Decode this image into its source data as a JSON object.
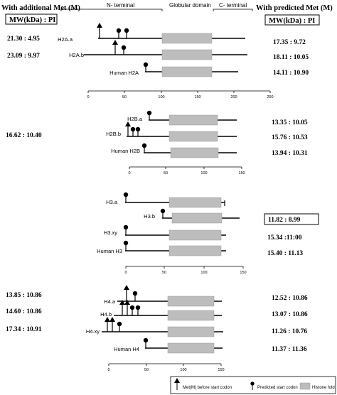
{
  "headers": {
    "left": "With additional Met (M)",
    "right": "With predicted Met (M)",
    "left_box": "MW(kDa) : PI",
    "right_box": "MW(kDa) : PI"
  },
  "regions": {
    "n_terminal": "N- terminal",
    "globular": "Globular domain",
    "c_terminal": "C- terminal"
  },
  "h2a": {
    "rows": [
      {
        "label": "H2A.a",
        "left": "21.30 : 4.95",
        "right": "17.35 : 9.72"
      },
      {
        "label": "H2A.b",
        "left": "23.09 : 9.97",
        "right": "18.11 : 10.05"
      },
      {
        "label": "Human H2A",
        "left": "",
        "right": "14.11 : 10.90"
      }
    ],
    "ticks": [
      "0",
      "50",
      "100",
      "150",
      "200",
      "250"
    ]
  },
  "h2b": {
    "rows": [
      {
        "label": "H2B.a",
        "right": "13.35 : 10.05"
      },
      {
        "label": "H2B.b",
        "right": "15.76 : 10.53"
      },
      {
        "label": "Human H2B",
        "right": "13.94 : 10.31"
      }
    ],
    "left": "16.62 : 10.40",
    "ticks": [
      "0",
      "50",
      "100",
      "150"
    ]
  },
  "h3": {
    "rows": [
      {
        "label": "H3.a",
        "right": ""
      },
      {
        "label": "H3.b",
        "right": "11.82 : 8.99"
      },
      {
        "label": "H3.xy",
        "right": "15.34 :11:00"
      },
      {
        "label": "Human H3",
        "right": "15.40 : 11.13"
      }
    ],
    "ticks": [
      "0",
      "50",
      "100",
      "150"
    ]
  },
  "h4": {
    "rows": [
      {
        "label": "H4.a",
        "left": "13.85 : 10.86",
        "right": "12.52 : 10.86"
      },
      {
        "label": "H4.b",
        "left": "14.60 : 10.86",
        "right": "13.07 : 10.86"
      },
      {
        "label": "H4.xy",
        "left": "17.34 : 10.91",
        "right": "11.26 : 10.76"
      },
      {
        "label": "Human H4",
        "left": "",
        "right": "11.37 : 11.36"
      }
    ],
    "ticks": [
      "0",
      "50",
      "100",
      "150"
    ]
  },
  "legend": {
    "met_before": "Met(M) before start codon",
    "predicted": "Predicted start codon",
    "histone_fold": "Histone fold"
  }
}
